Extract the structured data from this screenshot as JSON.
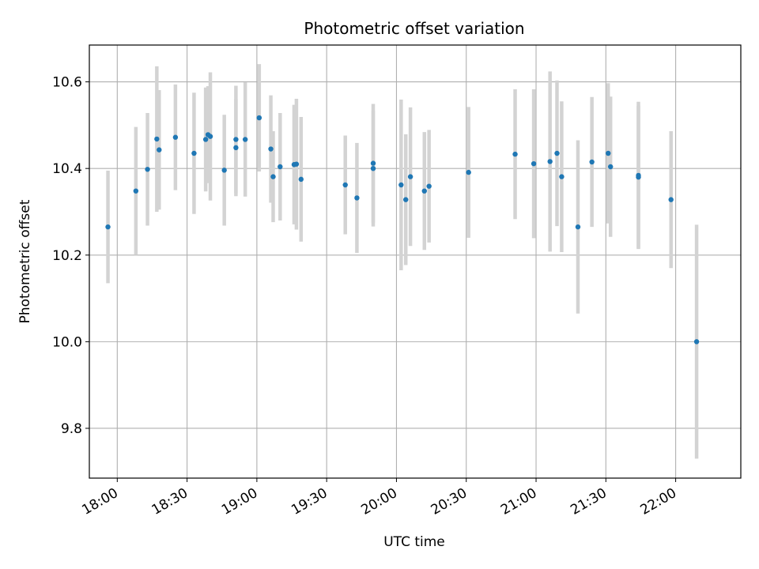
{
  "chart_data": {
    "type": "scatter",
    "title": "Photometric offset variation",
    "xlabel": "UTC time",
    "ylabel": "Photometric offset",
    "xlim": [
      "17:48",
      "22:28"
    ],
    "ylim": [
      9.685,
      10.685
    ],
    "x_ticks": [
      "18:00",
      "18:30",
      "19:00",
      "19:30",
      "20:00",
      "20:30",
      "21:00",
      "21:30",
      "22:00"
    ],
    "y_ticks": [
      "9.8",
      "10.0",
      "10.2",
      "10.4",
      "10.6"
    ],
    "grid": true,
    "colors": {
      "points": "#1f77b4",
      "error_bars": "#d3d3d3",
      "grid": "#b0b0b0"
    },
    "series": [
      {
        "x": [
          "17:56",
          "18:08",
          "18:13",
          "18:17",
          "18:18",
          "18:25",
          "18:33",
          "18:38",
          "18:39",
          "18:40",
          "18:46",
          "18:51",
          "18:51",
          "18:55",
          "19:01",
          "19:06",
          "19:07",
          "19:10",
          "19:16",
          "19:17",
          "19:19",
          "19:38",
          "19:43",
          "19:50",
          "19:50",
          "20:02",
          "20:04",
          "20:06",
          "20:12",
          "20:14",
          "20:31",
          "20:51",
          "20:59",
          "21:06",
          "21:09",
          "21:11",
          "21:18",
          "21:24",
          "21:31",
          "21:32",
          "21:44",
          "21:44",
          "21:58",
          "22:09"
        ],
        "y": [
          10.265,
          10.348,
          10.398,
          10.468,
          10.443,
          10.472,
          10.435,
          10.467,
          10.478,
          10.474,
          10.396,
          10.448,
          10.467,
          10.467,
          10.517,
          10.445,
          10.381,
          10.404,
          10.409,
          10.41,
          10.375,
          10.362,
          10.332,
          10.4,
          10.412,
          10.362,
          10.328,
          10.381,
          10.348,
          10.359,
          10.391,
          10.433,
          10.411,
          10.416,
          10.435,
          10.381,
          10.265,
          10.415,
          10.435,
          10.404,
          10.384,
          10.38,
          10.328,
          10.0
        ],
        "err": [
          0.13,
          0.148,
          0.13,
          0.168,
          0.138,
          0.122,
          0.14,
          0.12,
          0.112,
          0.148,
          0.128,
          0.112,
          0.124,
          0.132,
          0.124,
          0.124,
          0.105,
          0.124,
          0.138,
          0.151,
          0.144,
          0.114,
          0.127,
          0.134,
          0.137,
          0.197,
          0.151,
          0.16,
          0.136,
          0.13,
          0.151,
          0.15,
          0.172,
          0.208,
          0.168,
          0.174,
          0.2,
          0.15,
          0.162,
          0.162,
          0.17,
          0.165,
          0.158,
          0.27
        ]
      }
    ]
  }
}
